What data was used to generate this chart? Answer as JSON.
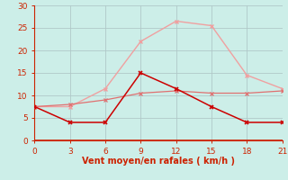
{
  "xlabel": "Vent moyen/en rafales ( km/h )",
  "x_values": [
    0,
    3,
    6,
    9,
    12,
    15,
    18,
    21
  ],
  "line_light_pink": [
    7.5,
    7.5,
    11.5,
    22.0,
    26.5,
    25.5,
    14.5,
    11.5
  ],
  "line_mid_pink": [
    7.5,
    8.0,
    9.0,
    10.5,
    11.0,
    10.5,
    10.5,
    11.0
  ],
  "line_dark_red": [
    7.5,
    4.0,
    4.0,
    15.0,
    11.5,
    7.5,
    4.0,
    4.0
  ],
  "color_light_pink": "#f0a0a0",
  "color_mid_pink": "#e07070",
  "color_dark_red": "#cc0000",
  "bg_color": "#cceee8",
  "grid_color": "#b0c8c8",
  "tick_color": "#cc2200",
  "label_color": "#cc2200",
  "ylim": [
    0,
    30
  ],
  "xlim": [
    0,
    21
  ],
  "yticks": [
    0,
    5,
    10,
    15,
    20,
    25,
    30
  ],
  "xticks": [
    0,
    3,
    6,
    9,
    12,
    15,
    18,
    21
  ]
}
